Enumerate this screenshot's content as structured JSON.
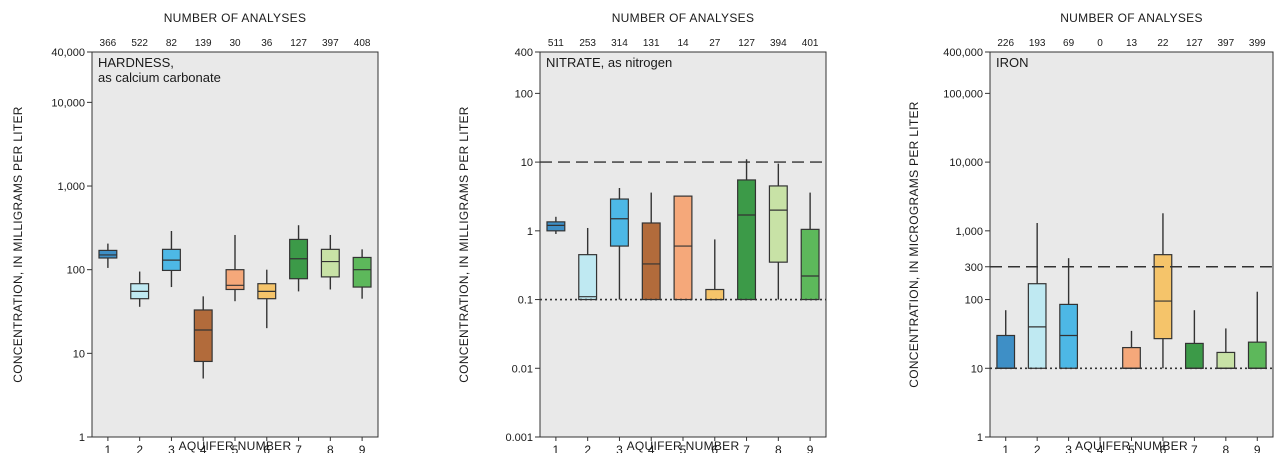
{
  "chart_data": [
    {
      "type": "box",
      "top_title": "NUMBER OF ANALYSES",
      "chart_label": [
        "HARDNESS,",
        "as calcium carbonate"
      ],
      "xlabel": "AQUIFER NUMBER",
      "ylabel": "CONCENTRATION, IN MILLIGRAMS PER LITER",
      "yscale": "log",
      "ylim": [
        1,
        40000
      ],
      "yticks": [
        1,
        10,
        100,
        1000,
        10000,
        40000
      ],
      "ytick_labels": [
        "1",
        "10",
        "100",
        "1,000",
        "10,000",
        "40,000"
      ],
      "categories": [
        "1",
        "2",
        "3",
        "4",
        "5",
        "6",
        "7",
        "8",
        "9"
      ],
      "counts": [
        "366",
        "522",
        "82",
        "139",
        "30",
        "36",
        "127",
        "397",
        "408"
      ],
      "boxes": [
        {
          "whisker_low": 105,
          "q1": 138,
          "median": 150,
          "q3": 170,
          "whisker_high": 205
        },
        {
          "whisker_low": 36,
          "q1": 45,
          "median": 55,
          "q3": 68,
          "whisker_high": 95
        },
        {
          "whisker_low": 62,
          "q1": 98,
          "median": 130,
          "q3": 175,
          "whisker_high": 290
        },
        {
          "whisker_low": 5,
          "q1": 8,
          "median": 19,
          "q3": 33,
          "whisker_high": 48
        },
        {
          "whisker_low": 42,
          "q1": 58,
          "median": 65,
          "q3": 100,
          "whisker_high": 260
        },
        {
          "whisker_low": 20,
          "q1": 45,
          "median": 55,
          "q3": 68,
          "whisker_high": 100
        },
        {
          "whisker_low": 55,
          "q1": 78,
          "median": 135,
          "q3": 230,
          "whisker_high": 340
        },
        {
          "whisker_low": 58,
          "q1": 82,
          "median": 125,
          "q3": 175,
          "whisker_high": 260
        },
        {
          "whisker_low": 45,
          "q1": 62,
          "median": 100,
          "q3": 140,
          "whisker_high": 175
        }
      ],
      "reference_lines": []
    },
    {
      "type": "box",
      "top_title": "NUMBER OF ANALYSES",
      "chart_label": [
        "NITRATE, as nitrogen"
      ],
      "xlabel": "AQUIFER NUMBER",
      "ylabel": "CONCENTRATION, IN MILLIGRAMS PER LITER",
      "yscale": "log",
      "ylim": [
        0.001,
        400
      ],
      "yticks": [
        0.001,
        0.01,
        0.1,
        1,
        10,
        100,
        400
      ],
      "ytick_labels": [
        "0.001",
        "0.01",
        "0.1",
        "1",
        "10",
        "100",
        "400"
      ],
      "categories": [
        "1",
        "2",
        "3",
        "4",
        "5",
        "6",
        "7",
        "8",
        "9"
      ],
      "counts": [
        "511",
        "253",
        "314",
        "131",
        "14",
        "27",
        "127",
        "394",
        "401"
      ],
      "boxes": [
        {
          "whisker_low": 0.9,
          "q1": 1.0,
          "median": 1.2,
          "q3": 1.35,
          "whisker_high": 1.6
        },
        {
          "whisker_low": 0.1,
          "q1": 0.1,
          "median": 0.11,
          "q3": 0.45,
          "whisker_high": 1.1
        },
        {
          "whisker_low": 0.1,
          "q1": 0.6,
          "median": 1.5,
          "q3": 2.9,
          "whisker_high": 4.2
        },
        {
          "whisker_low": 0.1,
          "q1": 0.1,
          "median": 0.33,
          "q3": 1.3,
          "whisker_high": 3.6
        },
        {
          "whisker_low": 0.1,
          "q1": 0.1,
          "median": 0.6,
          "q3": 3.2,
          "whisker_high": 3.2
        },
        {
          "whisker_low": 0.1,
          "q1": 0.1,
          "median": 0.1,
          "q3": 0.14,
          "whisker_high": 0.75
        },
        {
          "whisker_low": 0.1,
          "q1": 0.1,
          "median": 1.7,
          "q3": 5.5,
          "whisker_high": 11
        },
        {
          "whisker_low": 0.1,
          "q1": 0.35,
          "median": 2.0,
          "q3": 4.5,
          "whisker_high": 9.5
        },
        {
          "whisker_low": 0.1,
          "q1": 0.1,
          "median": 0.22,
          "q3": 1.05,
          "whisker_high": 3.6
        }
      ],
      "reference_lines": [
        {
          "value": 10,
          "style": "dashed"
        },
        {
          "value": 0.1,
          "style": "dotted"
        }
      ]
    },
    {
      "type": "box",
      "top_title": "NUMBER OF ANALYSES",
      "chart_label": [
        "IRON"
      ],
      "xlabel": "AQUIFER NUMBER",
      "ylabel": "CONCENTRATION, IN MICROGRAMS PER LITER",
      "yscale": "log",
      "ylim": [
        1,
        400000
      ],
      "yticks": [
        1,
        10,
        100,
        300,
        1000,
        10000,
        100000,
        400000
      ],
      "ytick_labels": [
        "1",
        "10",
        "100",
        "300",
        "1,000",
        "10,000",
        "100,000",
        "400,000"
      ],
      "categories": [
        "1",
        "2",
        "3",
        "4",
        "5",
        "6",
        "7",
        "8",
        "9"
      ],
      "counts": [
        "226",
        "193",
        "69",
        "0",
        "13",
        "22",
        "127",
        "397",
        "399"
      ],
      "boxes": [
        {
          "whisker_low": 10,
          "q1": 10,
          "median": 10,
          "q3": 30,
          "whisker_high": 70
        },
        {
          "whisker_low": 10,
          "q1": 10,
          "median": 40,
          "q3": 170,
          "whisker_high": 1300
        },
        {
          "whisker_low": 10,
          "q1": 10,
          "median": 30,
          "q3": 85,
          "whisker_high": 400
        },
        null,
        {
          "whisker_low": 10,
          "q1": 10,
          "median": 10,
          "q3": 20,
          "whisker_high": 35
        },
        {
          "whisker_low": 10,
          "q1": 27,
          "median": 95,
          "q3": 450,
          "whisker_high": 1800
        },
        {
          "whisker_low": 10,
          "q1": 10,
          "median": 10,
          "q3": 23,
          "whisker_high": 70
        },
        {
          "whisker_low": 10,
          "q1": 10,
          "median": 10,
          "q3": 17,
          "whisker_high": 38
        },
        {
          "whisker_low": 10,
          "q1": 10,
          "median": 10,
          "q3": 24,
          "whisker_high": 130
        }
      ],
      "reference_lines": [
        {
          "value": 300,
          "style": "dashed"
        },
        {
          "value": 10,
          "style": "dotted"
        }
      ]
    }
  ],
  "colors": {
    "aquifer_fills": [
      "#3e8fc6",
      "#bfe9f2",
      "#4db8e6",
      "#b26b3b",
      "#f5a87a",
      "#f5c46a",
      "#3c9a48",
      "#c8e2a6",
      "#5db85b"
    ],
    "plot_background": "#e9e9e9",
    "line": "#333333"
  }
}
